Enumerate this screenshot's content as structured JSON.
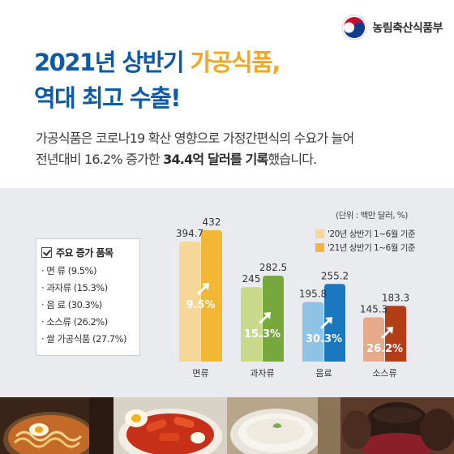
{
  "ministry": "농림축산식품부",
  "title": {
    "line1_a": "2021년 상반기 ",
    "line1_b": "가공식품,",
    "line2": "역대 최고 수출!"
  },
  "subtitle": {
    "line1": "가공식품은 코로나19 확산 영향으로 가정간편식의 수요가 늘어",
    "line2_a": "전년대비 16.2% 증가한 ",
    "line2_b": "34.4억 달러를 기록",
    "line2_c": "했습니다."
  },
  "box": {
    "title": "주요 증가 품목",
    "items": [
      "· 면   류 (9.5%)",
      "· 과자류 (15.3%)",
      "· 음   료 (30.3%)",
      "· 소스류 (26.2%)",
      "· 쌀 가공식품 (27.7%)"
    ]
  },
  "chart_data": {
    "type": "bar",
    "unit": "(단위 : 백만 달러, %)",
    "categories": [
      "면류",
      "과자류",
      "음료",
      "소스류"
    ],
    "series": [
      {
        "name": "'20년 상반기 1~6월 기준",
        "values": [
          394.7,
          245,
          195.8,
          145.3
        ]
      },
      {
        "name": "'21년 상반기 1~6월 기준",
        "values": [
          432,
          282.5,
          255.2,
          183.3
        ]
      }
    ],
    "growth_labels": [
      "9.5%",
      "15.3%",
      "30.3%",
      "26.2%"
    ],
    "colors": {
      "base": [
        "#f7d799",
        "#c9da8d",
        "#8ec3e6",
        "#e6a98a"
      ],
      "top": [
        "#f3b736",
        "#77a83b",
        "#1b78bf",
        "#b23e16"
      ]
    },
    "ylim": [
      0,
      432
    ]
  },
  "photos": [
    "ramen-photo",
    "tteokbokki-photo",
    "sikhye-photo",
    "sauce-jar-photo"
  ]
}
